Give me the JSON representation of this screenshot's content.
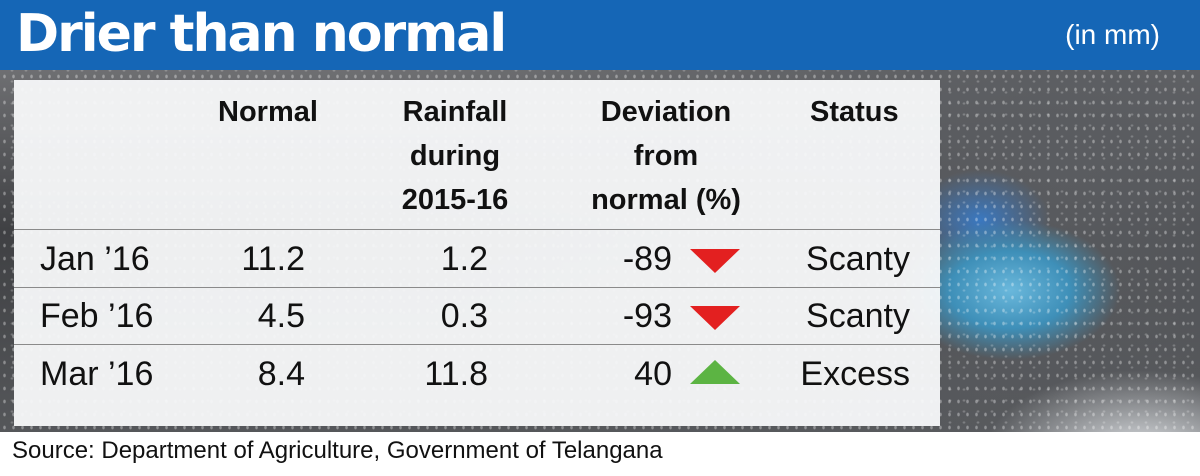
{
  "title": "Drier than normal",
  "unit": "(in mm)",
  "table": {
    "headers": {
      "normal": [
        "Normal"
      ],
      "rainfall": [
        "Rainfall",
        "during",
        "2015-16"
      ],
      "deviation": [
        "Deviation",
        "from",
        "normal (%)"
      ],
      "status": [
        "Status"
      ]
    },
    "rows": [
      {
        "month": "Jan ’16",
        "normal": "11.2",
        "rainfall": "1.2",
        "deviation": "-89",
        "trend": "down",
        "status": "Scanty"
      },
      {
        "month": "Feb ’16",
        "normal": "4.5",
        "rainfall": "0.3",
        "deviation": "-93",
        "trend": "down",
        "status": "Scanty"
      },
      {
        "month": "Mar ’16",
        "normal": "8.4",
        "rainfall": "11.8",
        "deviation": "40",
        "trend": "up",
        "status": "Excess"
      }
    ]
  },
  "colors": {
    "banner": "#1566b6",
    "down": "#e32020",
    "up": "#5cb443"
  },
  "source": "Source: Department of Agriculture, Government of Telangana"
}
